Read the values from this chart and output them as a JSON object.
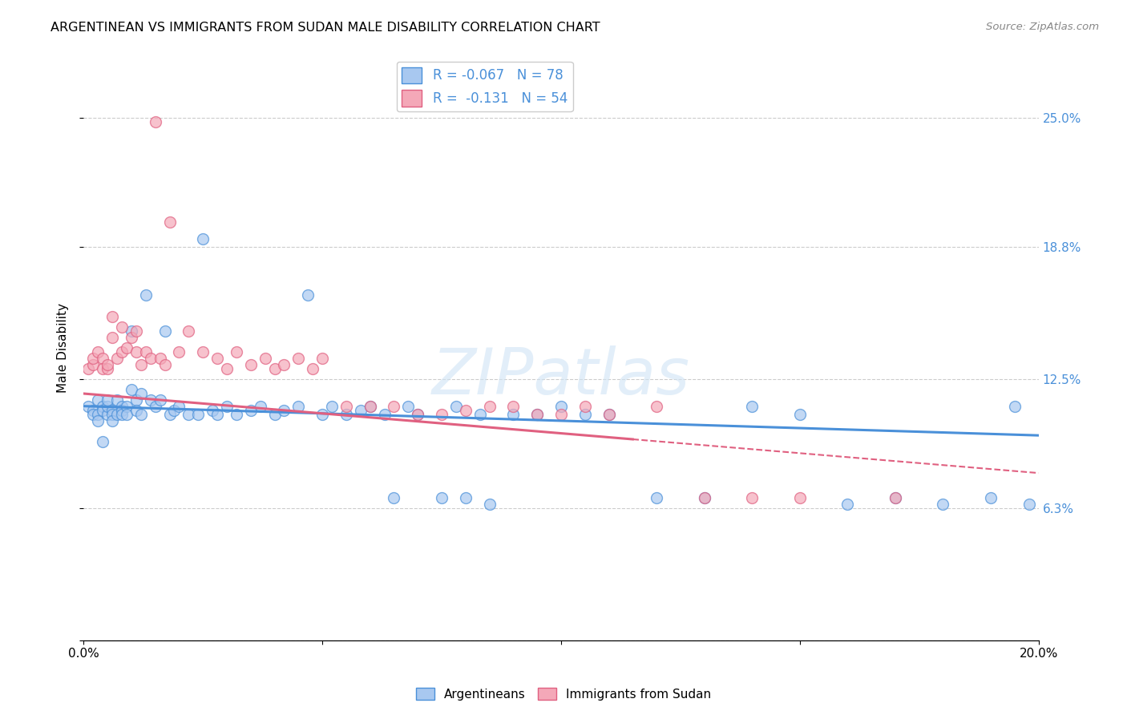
{
  "title": "ARGENTINEAN VS IMMIGRANTS FROM SUDAN MALE DISABILITY CORRELATION CHART",
  "source": "Source: ZipAtlas.com",
  "ylabel": "Male Disability",
  "watermark": "ZIPatlas",
  "xmin": 0.0,
  "xmax": 0.2,
  "ymin": 0.0,
  "ymax": 0.28,
  "yticks": [
    0.0,
    0.063,
    0.125,
    0.188,
    0.25
  ],
  "ytick_labels": [
    "",
    "6.3%",
    "12.5%",
    "18.8%",
    "25.0%"
  ],
  "xticks": [
    0.0,
    0.05,
    0.1,
    0.15,
    0.2
  ],
  "xtick_labels": [
    "0.0%",
    "",
    "",
    "",
    "20.0%"
  ],
  "R_arg": -0.067,
  "N_arg": 78,
  "R_sud": -0.131,
  "N_sud": 54,
  "color_arg": "#a8c8f0",
  "color_sud": "#f4a8b8",
  "line_color_arg": "#4a90d9",
  "line_color_sud": "#e06080",
  "argentineans_x": [
    0.001,
    0.002,
    0.002,
    0.003,
    0.003,
    0.003,
    0.004,
    0.004,
    0.004,
    0.005,
    0.005,
    0.005,
    0.006,
    0.006,
    0.006,
    0.007,
    0.007,
    0.008,
    0.008,
    0.008,
    0.009,
    0.009,
    0.01,
    0.01,
    0.011,
    0.011,
    0.012,
    0.012,
    0.013,
    0.014,
    0.015,
    0.016,
    0.017,
    0.018,
    0.019,
    0.02,
    0.022,
    0.024,
    0.025,
    0.027,
    0.028,
    0.03,
    0.032,
    0.035,
    0.037,
    0.04,
    0.042,
    0.045,
    0.047,
    0.05,
    0.052,
    0.055,
    0.058,
    0.06,
    0.063,
    0.065,
    0.068,
    0.07,
    0.075,
    0.078,
    0.08,
    0.083,
    0.085,
    0.09,
    0.095,
    0.1,
    0.105,
    0.11,
    0.12,
    0.13,
    0.14,
    0.15,
    0.16,
    0.17,
    0.18,
    0.19,
    0.195,
    0.198
  ],
  "argentineans_y": [
    0.112,
    0.11,
    0.108,
    0.115,
    0.108,
    0.105,
    0.112,
    0.11,
    0.095,
    0.108,
    0.112,
    0.115,
    0.11,
    0.108,
    0.105,
    0.115,
    0.108,
    0.112,
    0.11,
    0.108,
    0.112,
    0.108,
    0.148,
    0.12,
    0.115,
    0.11,
    0.118,
    0.108,
    0.165,
    0.115,
    0.112,
    0.115,
    0.148,
    0.108,
    0.11,
    0.112,
    0.108,
    0.108,
    0.192,
    0.11,
    0.108,
    0.112,
    0.108,
    0.11,
    0.112,
    0.108,
    0.11,
    0.112,
    0.165,
    0.108,
    0.112,
    0.108,
    0.11,
    0.112,
    0.108,
    0.068,
    0.112,
    0.108,
    0.068,
    0.112,
    0.068,
    0.108,
    0.065,
    0.108,
    0.108,
    0.112,
    0.108,
    0.108,
    0.068,
    0.068,
    0.112,
    0.108,
    0.065,
    0.068,
    0.065,
    0.068,
    0.112,
    0.065
  ],
  "sudan_x": [
    0.001,
    0.002,
    0.002,
    0.003,
    0.004,
    0.004,
    0.005,
    0.005,
    0.006,
    0.006,
    0.007,
    0.008,
    0.008,
    0.009,
    0.01,
    0.011,
    0.011,
    0.012,
    0.013,
    0.014,
    0.015,
    0.016,
    0.017,
    0.018,
    0.02,
    0.022,
    0.025,
    0.028,
    0.03,
    0.032,
    0.035,
    0.038,
    0.04,
    0.042,
    0.045,
    0.048,
    0.05,
    0.055,
    0.06,
    0.065,
    0.07,
    0.075,
    0.08,
    0.085,
    0.09,
    0.095,
    0.1,
    0.105,
    0.11,
    0.12,
    0.13,
    0.14,
    0.15,
    0.17
  ],
  "sudan_y": [
    0.13,
    0.132,
    0.135,
    0.138,
    0.135,
    0.13,
    0.13,
    0.132,
    0.145,
    0.155,
    0.135,
    0.138,
    0.15,
    0.14,
    0.145,
    0.138,
    0.148,
    0.132,
    0.138,
    0.135,
    0.248,
    0.135,
    0.132,
    0.2,
    0.138,
    0.148,
    0.138,
    0.135,
    0.13,
    0.138,
    0.132,
    0.135,
    0.13,
    0.132,
    0.135,
    0.13,
    0.135,
    0.112,
    0.112,
    0.112,
    0.108,
    0.108,
    0.11,
    0.112,
    0.112,
    0.108,
    0.108,
    0.112,
    0.108,
    0.112,
    0.068,
    0.068,
    0.068,
    0.068
  ],
  "trendline_arg_x0": 0.0,
  "trendline_arg_y0": 0.112,
  "trendline_arg_x1": 0.2,
  "trendline_arg_y1": 0.098,
  "trendline_sud_x0": 0.0,
  "trendline_sud_y0": 0.118,
  "trendline_sud_x1": 0.2,
  "trendline_sud_y1": 0.08,
  "trendline_sud_solid_end": 0.115
}
